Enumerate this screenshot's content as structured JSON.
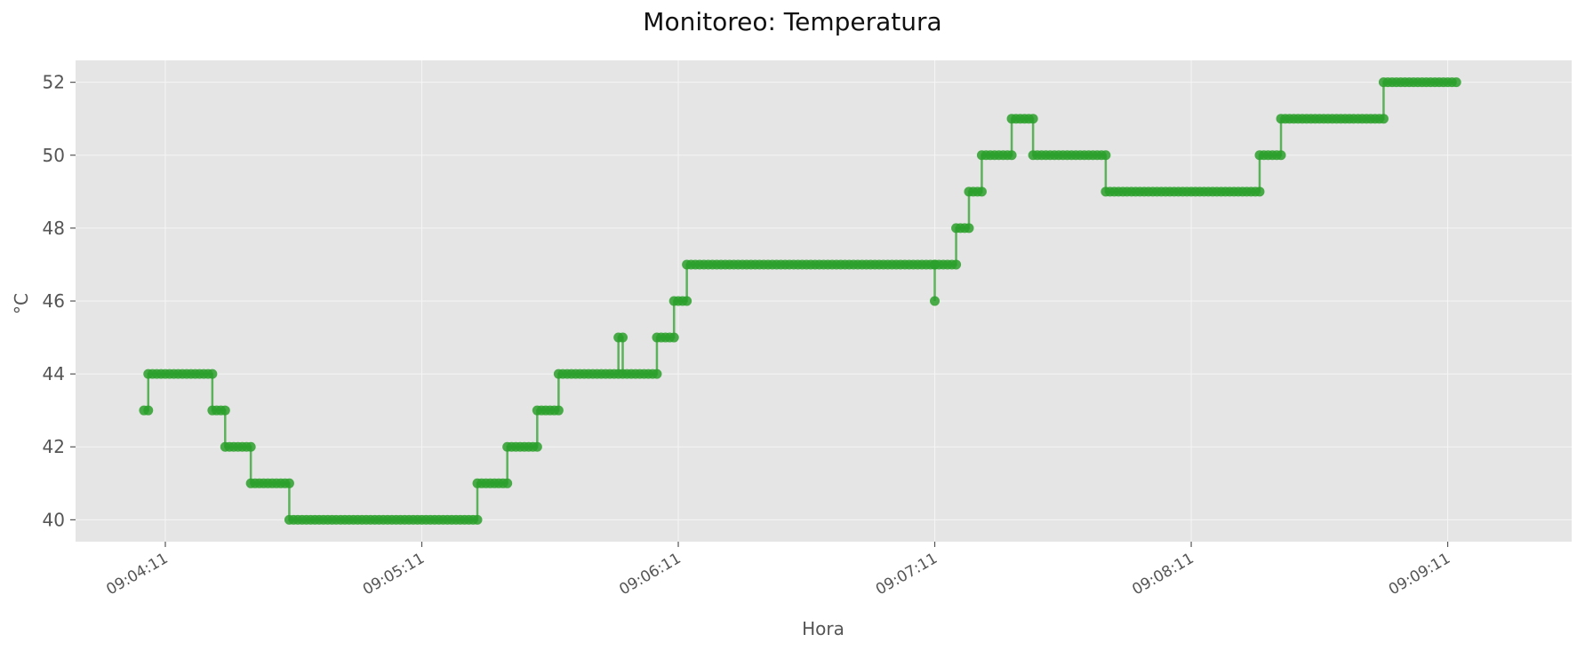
{
  "chart_data": {
    "type": "line",
    "title": "Monitoreo: Temperatura",
    "xlabel": "Hora",
    "ylabel": "°C",
    "ylim": [
      39.4,
      52.6
    ],
    "yticks": [
      40,
      42,
      44,
      46,
      48,
      50,
      52
    ],
    "x_domain_seconds": [
      "09:03:50",
      "09:09:40"
    ],
    "xticks": [
      "09:04:11",
      "09:05:11",
      "09:06:11",
      "09:07:11",
      "09:08:11",
      "09:09:11"
    ],
    "grid": true,
    "colors": {
      "series": "#2ca02c",
      "plot_bg": "#e5e5e5",
      "grid": "#f5f5f5"
    },
    "series": [
      {
        "steps": [
          [
            "09:04:06",
            "09:04:07",
            43
          ],
          [
            "09:04:07",
            "09:04:22",
            44
          ],
          [
            "09:04:22",
            "09:04:25",
            43
          ],
          [
            "09:04:25",
            "09:04:31",
            42
          ],
          [
            "09:04:31",
            "09:04:40",
            41
          ],
          [
            "09:04:40",
            "09:05:24",
            40
          ],
          [
            "09:05:24",
            "09:05:31",
            41
          ],
          [
            "09:05:31",
            "09:05:38",
            42
          ],
          [
            "09:05:38",
            "09:05:43",
            43
          ],
          [
            "09:05:43",
            "09:05:57",
            44
          ],
          [
            "09:05:57",
            "09:05:58",
            45
          ],
          [
            "09:05:58",
            "09:06:06",
            44
          ],
          [
            "09:06:06",
            "09:06:10",
            45
          ],
          [
            "09:06:10",
            "09:06:13",
            46
          ],
          [
            "09:06:13",
            "09:07:11",
            47
          ],
          [
            "09:07:11",
            "09:07:11",
            46
          ],
          [
            "09:07:11",
            "09:07:16",
            47
          ],
          [
            "09:07:16",
            "09:07:19",
            48
          ],
          [
            "09:07:19",
            "09:07:22",
            49
          ],
          [
            "09:07:22",
            "09:07:29",
            50
          ],
          [
            "09:07:29",
            "09:07:34",
            51
          ],
          [
            "09:07:34",
            "09:07:51",
            50
          ],
          [
            "09:07:51",
            "09:08:27",
            49
          ],
          [
            "09:08:27",
            "09:08:32",
            50
          ],
          [
            "09:08:32",
            "09:08:56",
            51
          ],
          [
            "09:08:56",
            "09:09:13",
            52
          ]
        ]
      }
    ]
  }
}
